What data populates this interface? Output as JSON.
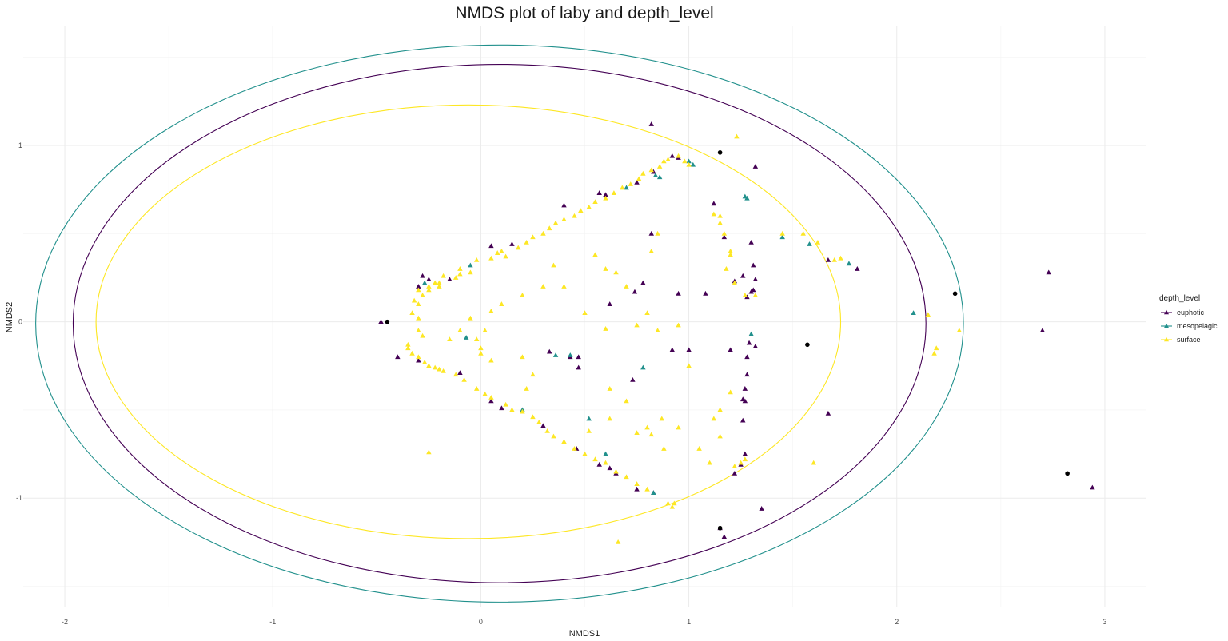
{
  "chart_data": {
    "type": "scatter",
    "title": "NMDS plot of laby and depth_level",
    "xlabel": "NMDS1",
    "ylabel": "NMDS2",
    "xlim": [
      -2.2,
      3.2
    ],
    "ylim": [
      -1.62,
      1.68
    ],
    "x_major_ticks": [
      -2,
      -1,
      0,
      1,
      2,
      3
    ],
    "x_tick_labels": [
      "-2",
      "-1",
      "0",
      "1",
      "2",
      "3"
    ],
    "x_minor_ticks": [
      -1.5,
      -0.5,
      0.5,
      1.5,
      2.5
    ],
    "y_major_ticks": [
      -1,
      0,
      1
    ],
    "y_tick_labels": [
      "-1",
      "0",
      "1"
    ],
    "y_minor_ticks": [
      -1.5,
      -0.5,
      0.5,
      1.5
    ],
    "grid": true,
    "legend": {
      "title": "depth_level",
      "position": "right"
    },
    "colors": {
      "euphotic": "#440154",
      "mesopelagic": "#21908C",
      "surface": "#FDE725",
      "centroid": "#000000",
      "grid": "#ebebeb"
    },
    "series": [
      {
        "name": "euphotic",
        "marker": "triangle",
        "points": [
          [
            0.82,
            1.12
          ],
          [
            1.12,
            0.67
          ],
          [
            1.17,
            0.48
          ],
          [
            1.32,
            0.88
          ],
          [
            1.3,
            0.45
          ],
          [
            1.31,
            0.32
          ],
          [
            1.26,
            0.26
          ],
          [
            1.22,
            0.23
          ],
          [
            1.32,
            0.24
          ],
          [
            1.31,
            0.18
          ],
          [
            1.3,
            0.17
          ],
          [
            1.28,
            0.14
          ],
          [
            1.67,
            0.35
          ],
          [
            1.81,
            0.3
          ],
          [
            2.73,
            0.28
          ],
          [
            2.7,
            -0.05
          ],
          [
            2.94,
            -0.94
          ],
          [
            1.35,
            -1.06
          ],
          [
            1.15,
            -1.17
          ],
          [
            1.17,
            -1.22
          ],
          [
            1.67,
            -0.52
          ],
          [
            0.73,
            -0.33
          ],
          [
            0.74,
            0.17
          ],
          [
            0.78,
            0.22
          ],
          [
            0.95,
            0.16
          ],
          [
            1.08,
            0.16
          ],
          [
            1.0,
            -0.16
          ],
          [
            1.2,
            -0.16
          ],
          [
            0.92,
            -0.16
          ],
          [
            0.33,
            -0.17
          ],
          [
            0.43,
            -0.2
          ],
          [
            0.47,
            -0.2
          ],
          [
            0.62,
            0.1
          ],
          [
            0.47,
            -0.26
          ],
          [
            0.82,
            0.5
          ],
          [
            -0.48,
            0.0
          ],
          [
            -0.4,
            -0.2
          ],
          [
            -0.3,
            -0.22
          ],
          [
            -0.1,
            -0.29
          ],
          [
            0.05,
            -0.45
          ],
          [
            0.1,
            -0.49
          ],
          [
            0.3,
            -0.59
          ],
          [
            0.46,
            -0.72
          ],
          [
            0.57,
            -0.81
          ],
          [
            0.62,
            -0.83
          ],
          [
            0.65,
            -0.86
          ],
          [
            0.75,
            -0.95
          ],
          [
            0.83,
            -0.97
          ],
          [
            1.22,
            -0.86
          ],
          [
            1.25,
            -0.81
          ],
          [
            1.27,
            -0.75
          ],
          [
            1.26,
            -0.56
          ],
          [
            1.27,
            -0.45
          ],
          [
            1.26,
            -0.44
          ],
          [
            1.27,
            -0.38
          ],
          [
            1.28,
            -0.3
          ],
          [
            1.28,
            -0.2
          ],
          [
            1.29,
            -0.12
          ],
          [
            1.32,
            -0.14
          ],
          [
            -0.28,
            0.26
          ],
          [
            -0.25,
            0.24
          ],
          [
            -0.15,
            0.24
          ],
          [
            -0.3,
            0.2
          ],
          [
            0.05,
            0.43
          ],
          [
            0.15,
            0.44
          ],
          [
            0.4,
            0.66
          ],
          [
            0.57,
            0.73
          ],
          [
            0.6,
            0.72
          ],
          [
            0.75,
            0.79
          ],
          [
            0.83,
            0.85
          ],
          [
            0.92,
            0.94
          ],
          [
            0.95,
            0.93
          ]
        ]
      },
      {
        "name": "mesopelagic",
        "marker": "triangle",
        "points": [
          [
            1.02,
            0.89
          ],
          [
            1.0,
            0.91
          ],
          [
            0.84,
            0.83
          ],
          [
            0.86,
            0.82
          ],
          [
            1.28,
            0.7
          ],
          [
            1.27,
            0.71
          ],
          [
            1.45,
            0.48
          ],
          [
            1.58,
            0.44
          ],
          [
            1.77,
            0.33
          ],
          [
            2.08,
            0.05
          ],
          [
            0.78,
            -0.26
          ],
          [
            0.36,
            -0.19
          ],
          [
            0.43,
            -0.19
          ],
          [
            -0.07,
            -0.09
          ],
          [
            0.83,
            -0.97
          ],
          [
            1.3,
            -0.07
          ],
          [
            -0.05,
            0.32
          ],
          [
            -0.27,
            0.22
          ],
          [
            0.7,
            0.76
          ],
          [
            0.6,
            -0.75
          ],
          [
            0.2,
            -0.5
          ],
          [
            0.52,
            -0.55
          ]
        ]
      },
      {
        "name": "surface",
        "marker": "triangle",
        "points": [
          [
            1.23,
            1.05
          ],
          [
            1.12,
            0.61
          ],
          [
            1.15,
            0.56
          ],
          [
            1.15,
            0.6
          ],
          [
            1.17,
            0.5
          ],
          [
            1.2,
            0.4
          ],
          [
            1.2,
            0.38
          ],
          [
            1.18,
            0.3
          ],
          [
            1.22,
            0.22
          ],
          [
            1.27,
            0.15
          ],
          [
            1.32,
            0.15
          ],
          [
            1.45,
            0.5
          ],
          [
            1.55,
            0.5
          ],
          [
            1.62,
            0.45
          ],
          [
            1.7,
            0.35
          ],
          [
            1.73,
            0.36
          ],
          [
            2.15,
            0.04
          ],
          [
            2.3,
            -0.05
          ],
          [
            2.19,
            -0.15
          ],
          [
            2.18,
            -0.18
          ],
          [
            1.6,
            -0.8
          ],
          [
            1.25,
            -0.8
          ],
          [
            1.27,
            -0.78
          ],
          [
            1.22,
            -0.82
          ],
          [
            1.1,
            -0.8
          ],
          [
            1.05,
            -0.72
          ],
          [
            1.2,
            -0.4
          ],
          [
            1.15,
            -0.5
          ],
          [
            1.12,
            -0.55
          ],
          [
            1.15,
            -0.65
          ],
          [
            0.93,
            -1.03
          ],
          [
            0.9,
            -1.03
          ],
          [
            0.92,
            -1.05
          ],
          [
            0.66,
            -1.25
          ],
          [
            -0.25,
            -0.74
          ],
          [
            0.85,
            0.5
          ],
          [
            0.82,
            0.4
          ],
          [
            0.65,
            0.28
          ],
          [
            0.7,
            0.2
          ],
          [
            0.55,
            0.38
          ],
          [
            0.6,
            0.3
          ],
          [
            0.4,
            0.2
          ],
          [
            0.35,
            0.32
          ],
          [
            0.3,
            0.2
          ],
          [
            0.2,
            0.15
          ],
          [
            0.1,
            0.1
          ],
          [
            0.05,
            0.06
          ],
          [
            0.5,
            0.05
          ],
          [
            0.6,
            -0.04
          ],
          [
            0.75,
            -0.02
          ],
          [
            0.85,
            -0.05
          ],
          [
            0.95,
            -0.02
          ],
          [
            0.8,
            0.05
          ],
          [
            1.0,
            -0.25
          ],
          [
            0.62,
            -0.38
          ],
          [
            0.7,
            -0.45
          ],
          [
            0.62,
            -0.55
          ],
          [
            0.52,
            -0.62
          ],
          [
            0.75,
            -0.63
          ],
          [
            0.88,
            -0.72
          ],
          [
            0.8,
            -0.6
          ],
          [
            0.95,
            -0.6
          ],
          [
            0.87,
            -0.55
          ],
          [
            0.82,
            -0.64
          ],
          [
            0.0,
            -0.15
          ],
          [
            0.2,
            -0.2
          ],
          [
            0.25,
            -0.3
          ],
          [
            0.22,
            -0.38
          ],
          [
            0.02,
            -0.05
          ],
          [
            -0.1,
            -0.05
          ],
          [
            -0.15,
            -0.1
          ],
          [
            -0.02,
            -0.1
          ],
          [
            0.0,
            -0.18
          ],
          [
            0.05,
            -0.22
          ],
          [
            -0.05,
            0.02
          ],
          [
            -0.3,
            -0.05
          ],
          [
            -0.28,
            -0.08
          ],
          [
            -0.35,
            -0.15
          ],
          [
            -0.33,
            -0.18
          ],
          [
            -0.25,
            -0.25
          ],
          [
            -0.2,
            -0.27
          ],
          [
            -0.12,
            -0.3
          ],
          [
            -0.08,
            -0.33
          ],
          [
            -0.02,
            -0.38
          ],
          [
            0.02,
            -0.41
          ],
          [
            0.05,
            -0.43
          ],
          [
            0.12,
            -0.47
          ],
          [
            0.15,
            -0.5
          ],
          [
            0.2,
            -0.51
          ],
          [
            0.25,
            -0.54
          ],
          [
            0.28,
            -0.57
          ],
          [
            0.32,
            -0.62
          ],
          [
            0.35,
            -0.65
          ],
          [
            0.4,
            -0.68
          ],
          [
            0.45,
            -0.72
          ],
          [
            0.5,
            -0.75
          ],
          [
            0.55,
            -0.78
          ],
          [
            0.6,
            -0.8
          ],
          [
            0.65,
            -0.85
          ],
          [
            0.7,
            -0.88
          ],
          [
            0.75,
            -0.92
          ],
          [
            0.8,
            -0.95
          ],
          [
            -0.33,
            0.05
          ],
          [
            -0.3,
            0.1
          ],
          [
            -0.32,
            0.12
          ],
          [
            -0.3,
            0.18
          ],
          [
            -0.25,
            0.2
          ],
          [
            -0.2,
            0.22
          ],
          [
            -0.18,
            0.26
          ],
          [
            -0.12,
            0.25
          ],
          [
            -0.1,
            0.27
          ],
          [
            -0.05,
            0.28
          ],
          [
            -0.02,
            0.35
          ],
          [
            0.05,
            0.36
          ],
          [
            0.08,
            0.39
          ],
          [
            0.1,
            0.4
          ],
          [
            0.12,
            0.37
          ],
          [
            0.18,
            0.42
          ],
          [
            0.22,
            0.45
          ],
          [
            0.25,
            0.48
          ],
          [
            0.3,
            0.5
          ],
          [
            0.33,
            0.53
          ],
          [
            0.36,
            0.56
          ],
          [
            0.4,
            0.58
          ],
          [
            0.45,
            0.6
          ],
          [
            0.48,
            0.63
          ],
          [
            0.52,
            0.65
          ],
          [
            0.55,
            0.68
          ],
          [
            0.6,
            0.7
          ],
          [
            0.64,
            0.73
          ],
          [
            0.68,
            0.76
          ],
          [
            0.72,
            0.78
          ],
          [
            0.76,
            0.81
          ],
          [
            0.78,
            0.84
          ],
          [
            0.82,
            0.86
          ],
          [
            0.86,
            0.88
          ],
          [
            0.88,
            0.91
          ],
          [
            0.9,
            0.92
          ],
          [
            0.95,
            0.94
          ],
          [
            0.98,
            0.91
          ],
          [
            1.0,
            0.89
          ],
          [
            -0.2,
            0.2
          ],
          [
            -0.25,
            0.18
          ],
          [
            -0.28,
            0.15
          ],
          [
            -0.22,
            0.22
          ],
          [
            -0.3,
            0.02
          ],
          [
            -0.1,
            0.3
          ],
          [
            -0.35,
            -0.13
          ],
          [
            -0.3,
            -0.2
          ],
          [
            -0.27,
            -0.23
          ],
          [
            -0.22,
            -0.26
          ],
          [
            -0.18,
            -0.28
          ]
        ]
      }
    ],
    "centroids": [
      [
        -0.45,
        0.0
      ],
      [
        1.15,
        0.96
      ],
      [
        2.28,
        0.16
      ],
      [
        1.57,
        -0.13
      ],
      [
        2.82,
        -0.86
      ],
      [
        1.15,
        -1.17
      ]
    ],
    "ellipses": [
      {
        "group": "mesopelagic",
        "cx": 0.09,
        "cy": -0.01,
        "rx": 2.23,
        "ry": 1.58
      },
      {
        "group": "euphotic",
        "cx": 0.09,
        "cy": -0.01,
        "rx": 2.05,
        "ry": 1.47
      },
      {
        "group": "surface",
        "cx": -0.06,
        "cy": 0.0,
        "rx": 1.79,
        "ry": 1.23
      }
    ]
  }
}
